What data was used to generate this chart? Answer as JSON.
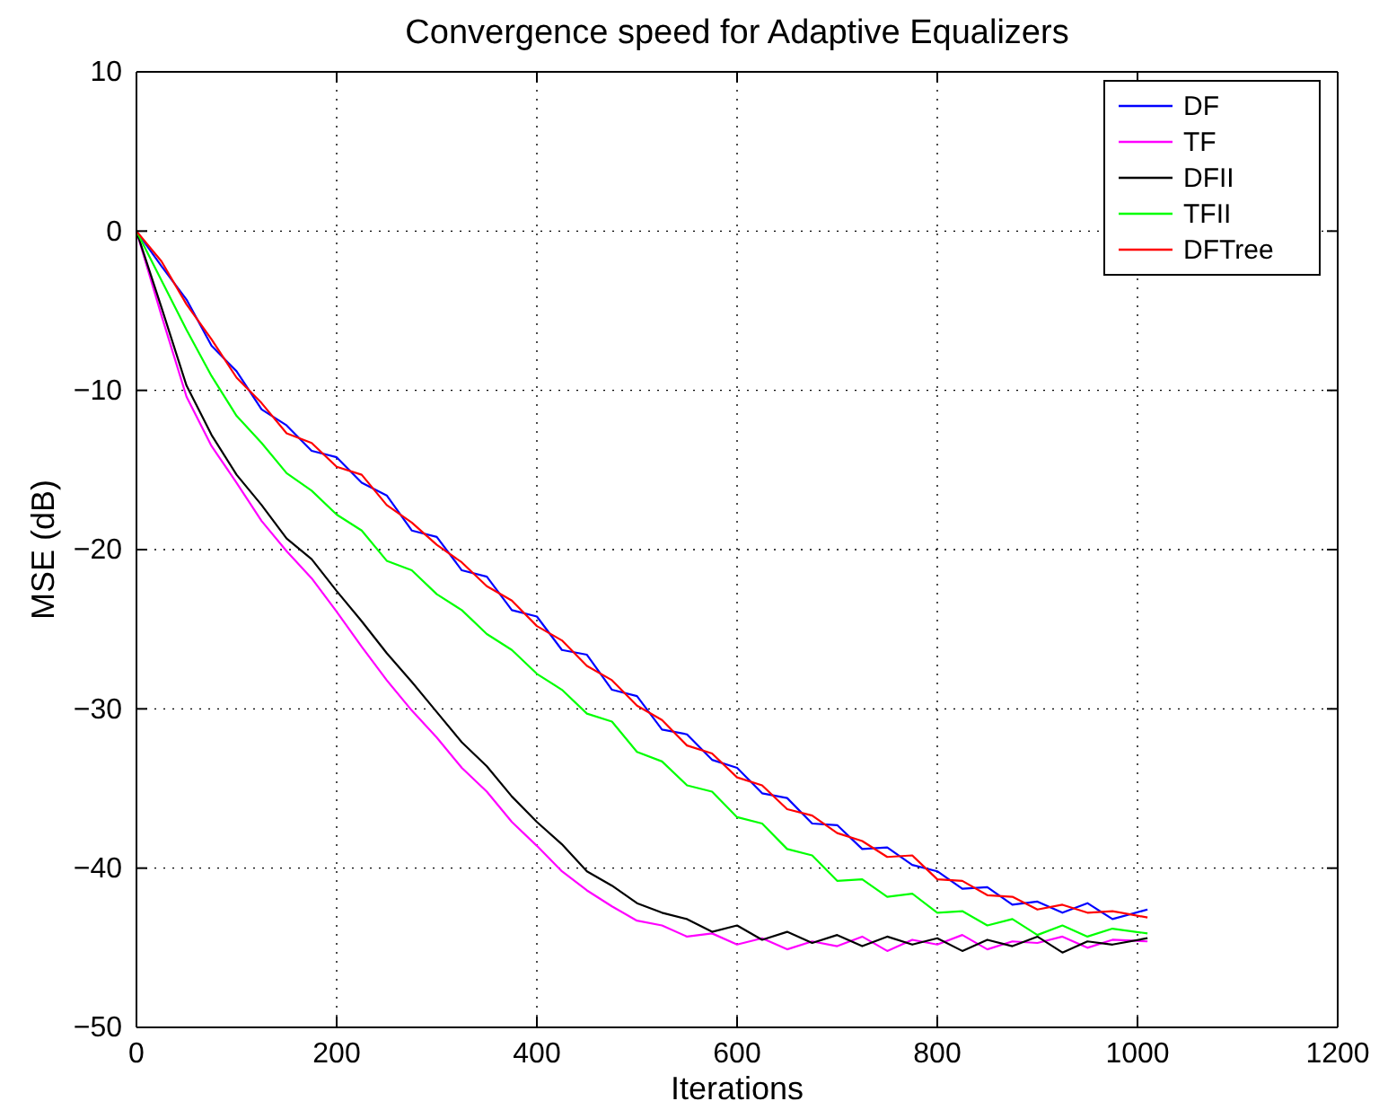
{
  "chart_data": {
    "type": "line",
    "title": "Convergence speed for Adaptive Equalizers",
    "xlabel": "Iterations",
    "ylabel": "MSE (dB)",
    "x": [
      0,
      25,
      50,
      75,
      100,
      125,
      150,
      175,
      200,
      225,
      250,
      275,
      300,
      325,
      350,
      375,
      400,
      425,
      450,
      475,
      500,
      525,
      550,
      575,
      600,
      625,
      650,
      675,
      700,
      725,
      750,
      775,
      800,
      825,
      850,
      875,
      900,
      925,
      950,
      975,
      1010
    ],
    "xlim": [
      0,
      1200
    ],
    "xticks": [
      0,
      200,
      400,
      600,
      800,
      1000,
      1200
    ],
    "ylim": [
      -50,
      10
    ],
    "yticks": [
      -50,
      -40,
      -30,
      -20,
      -10,
      0,
      10
    ],
    "grid": true,
    "legend": "top right",
    "line_style": "solid",
    "marker": "none",
    "series": [
      {
        "name": "DF",
        "color": "#0000ff",
        "values": [
          0,
          -2.2,
          -4.3,
          -7.2,
          -8.8,
          -11.2,
          -12.2,
          -13.8,
          -14.2,
          -15.8,
          -16.6,
          -18.8,
          -19.2,
          -21.3,
          -21.7,
          -23.8,
          -24.2,
          -26.3,
          -26.6,
          -28.8,
          -29.2,
          -31.3,
          -31.6,
          -33.2,
          -33.7,
          -35.3,
          -35.6,
          -37.2,
          -37.3,
          -38.8,
          -38.7,
          -39.8,
          -40.2,
          -41.3,
          -41.2,
          -42.3,
          -42.1,
          -42.8,
          -42.2,
          -43.2,
          -42.6
        ]
      },
      {
        "name": "TF",
        "color": "#ff00ff",
        "values": [
          0,
          -5.3,
          -10.4,
          -13.5,
          -15.8,
          -18.2,
          -20.1,
          -21.8,
          -23.9,
          -26.1,
          -28.2,
          -30.1,
          -31.8,
          -33.7,
          -35.2,
          -37.1,
          -38.6,
          -40.2,
          -41.4,
          -42.4,
          -43.3,
          -43.6,
          -44.3,
          -44.1,
          -44.8,
          -44.4,
          -45.1,
          -44.6,
          -44.9,
          -44.3,
          -45.2,
          -44.5,
          -44.8,
          -44.2,
          -45.1,
          -44.6,
          -44.7,
          -44.3,
          -45.0,
          -44.5,
          -44.6
        ]
      },
      {
        "name": "DFII",
        "color": "#000000",
        "values": [
          0,
          -4.8,
          -9.7,
          -12.8,
          -15.3,
          -17.2,
          -19.3,
          -20.6,
          -22.6,
          -24.5,
          -26.5,
          -28.3,
          -30.2,
          -32.1,
          -33.6,
          -35.5,
          -37.1,
          -38.5,
          -40.2,
          -41.1,
          -42.2,
          -42.8,
          -43.2,
          -44.0,
          -43.6,
          -44.5,
          -44.0,
          -44.7,
          -44.2,
          -44.9,
          -44.3,
          -44.8,
          -44.4,
          -45.2,
          -44.5,
          -44.9,
          -44.3,
          -45.3,
          -44.6,
          -44.8,
          -44.4
        ]
      },
      {
        "name": "TFII",
        "color": "#00ff00",
        "values": [
          0,
          -3.1,
          -6.2,
          -9.1,
          -11.6,
          -13.3,
          -15.2,
          -16.3,
          -17.8,
          -18.8,
          -20.7,
          -21.3,
          -22.8,
          -23.8,
          -25.3,
          -26.3,
          -27.8,
          -28.8,
          -30.3,
          -30.8,
          -32.7,
          -33.3,
          -34.8,
          -35.2,
          -36.8,
          -37.2,
          -38.8,
          -39.2,
          -40.8,
          -40.7,
          -41.8,
          -41.6,
          -42.8,
          -42.7,
          -43.6,
          -43.2,
          -44.2,
          -43.6,
          -44.3,
          -43.8,
          -44.1
        ]
      },
      {
        "name": "DFTree",
        "color": "#ff0000",
        "values": [
          0,
          -1.9,
          -4.6,
          -6.8,
          -9.2,
          -10.8,
          -12.7,
          -13.3,
          -14.8,
          -15.3,
          -17.2,
          -18.3,
          -19.7,
          -20.8,
          -22.3,
          -23.2,
          -24.8,
          -25.7,
          -27.3,
          -28.2,
          -29.8,
          -30.7,
          -32.3,
          -32.8,
          -34.3,
          -34.8,
          -36.3,
          -36.7,
          -37.8,
          -38.3,
          -39.3,
          -39.2,
          -40.7,
          -40.8,
          -41.7,
          -41.8,
          -42.6,
          -42.3,
          -42.8,
          -42.7,
          -43.1
        ]
      }
    ]
  }
}
